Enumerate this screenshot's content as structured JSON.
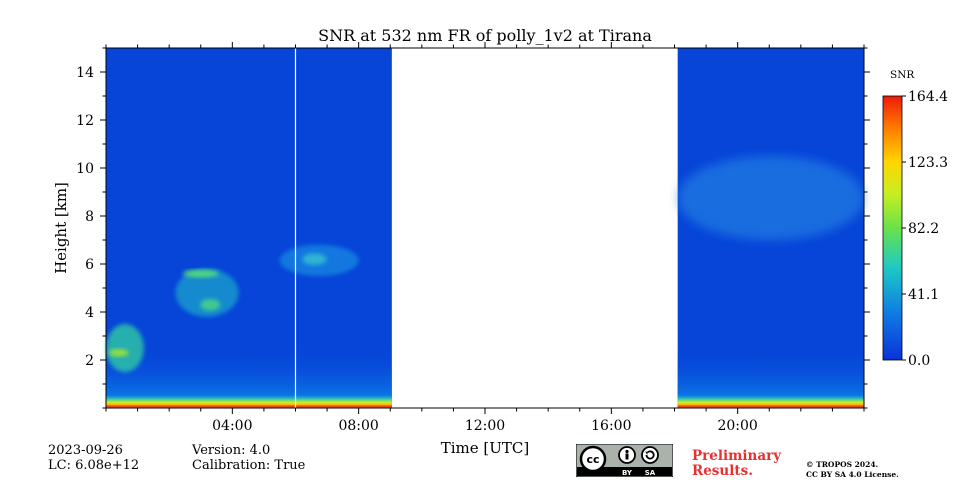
{
  "chart_data": {
    "type": "heatmap",
    "title": "SNR at 532 nm FR of polly_1v2 at Tirana",
    "xlabel": "Time [UTC]",
    "ylabel": "Height [km]",
    "x_range_hours": [
      0,
      24
    ],
    "ylim": [
      0,
      15
    ],
    "x_tick_labels": [
      "04:00",
      "08:00",
      "12:00",
      "16:00",
      "20:00"
    ],
    "x_tick_hours": [
      4,
      8,
      12,
      16,
      20
    ],
    "y_tick_labels": [
      "2",
      "4",
      "6",
      "8",
      "10",
      "12",
      "14"
    ],
    "y_tick_values": [
      2,
      4,
      6,
      8,
      10,
      12,
      14
    ],
    "data_segments_hours": [
      [
        0,
        9.05
      ],
      [
        18.1,
        24
      ]
    ],
    "gap_hours": [
      9.05,
      18.1
    ],
    "vertical_line_hour": 6.0,
    "colorbar": {
      "label": "SNR",
      "min": 0.0,
      "max": 164.4,
      "tick_labels": [
        "164.4",
        "123.3",
        "82.2",
        "41.1",
        "0.0"
      ],
      "tick_values": [
        164.4,
        123.3,
        82.2,
        41.1,
        0.0
      ],
      "colormap": "jet"
    },
    "features": [
      {
        "name": "surface-layer",
        "hours": [
          0,
          24
        ],
        "height_km": [
          0,
          0.5
        ],
        "snr": "high"
      },
      {
        "name": "low-aerosol-layer",
        "hours": [
          0,
          1.2
        ],
        "height_km": [
          1.5,
          3.5
        ],
        "snr": "medium"
      },
      {
        "name": "mid-cloud-layer-1",
        "hours": [
          2.2,
          4.2
        ],
        "height_km": [
          3.8,
          5.8
        ],
        "snr": "medium"
      },
      {
        "name": "mid-cloud-layer-2",
        "hours": [
          5.5,
          8.0
        ],
        "height_km": [
          5.5,
          6.8
        ],
        "snr": "low"
      },
      {
        "name": "cirrus-layer",
        "hours": [
          18.1,
          24
        ],
        "height_km": [
          7,
          10.5
        ],
        "snr": "low"
      }
    ]
  },
  "info": {
    "date": "2023-09-26",
    "lc": "LC: 6.08e+12",
    "version": "Version: 4.0",
    "calibration": "Calibration: True"
  },
  "license": {
    "badge_cc": "cc",
    "badge_by": "BY",
    "badge_sa": "SA",
    "prelim_line1": "Preliminary",
    "prelim_line2": "Results.",
    "copyright_line1": "© TROPOS 2024.",
    "copyright_line2": "CC BY SA 4.0 License."
  },
  "colors": {
    "background_low": "#0645d8",
    "gap": "#ffffff",
    "prelim_text": "#e8302f"
  }
}
